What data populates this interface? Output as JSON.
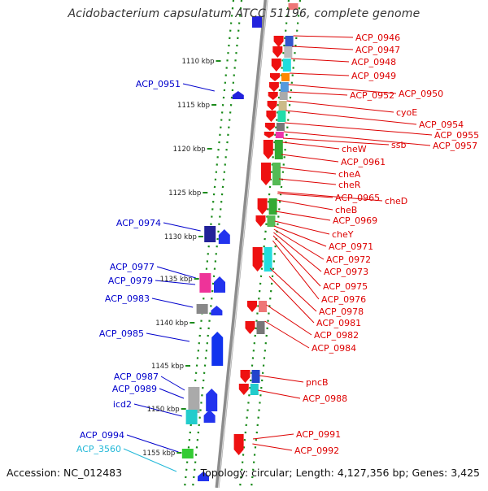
{
  "title": "Acidobacterium capsulatum ATCC 51196, complete genome",
  "footer": {
    "accession": "Accession: NC_012483",
    "stats": "Topology: circular; Length: 4,127,356 bp; Genes: 3,425"
  },
  "colors": {
    "right_label": "#dd0000",
    "left_label": "#0000cc",
    "rna_label": "#22b8d8",
    "backbone": "#8c8c8c",
    "track_dots": "#1a8a1a"
  },
  "scale_labels": [
    "1110 kbp",
    "1115 kbp",
    "1120 kbp",
    "1125 kbp",
    "1130 kbp",
    "1135 kbp",
    "1140 kbp",
    "1145 kbp",
    "1150 kbp",
    "1155 kbp"
  ],
  "right_genes": [
    "ACP_0946",
    "ACP_0947",
    "ACP_0948",
    "ACP_0949",
    "ACP_0950",
    "ACP_0952",
    "cyoE",
    "ACP_0954",
    "ACP_0955",
    "ACP_0957",
    "ssb",
    "cheW",
    "ACP_0961",
    "cheA",
    "cheR",
    "cheD",
    "ACP_0965",
    "cheB",
    "ACP_0969",
    "cheY",
    "ACP_0971",
    "ACP_0972",
    "ACP_0973",
    "ACP_0975",
    "ACP_0976",
    "ACP_0978",
    "ACP_0981",
    "ACP_0982",
    "ACP_0984",
    "pncB",
    "ACP_0988",
    "ACP_0991",
    "ACP_0992"
  ],
  "left_genes": [
    "ACP_0951",
    "ACP_0974",
    "ACP_0977",
    "ACP_0979",
    "ACP_0983",
    "ACP_0985",
    "ACP_0987",
    "ACP_0989",
    "icd2",
    "ACP_0994",
    "ACP_3560"
  ]
}
